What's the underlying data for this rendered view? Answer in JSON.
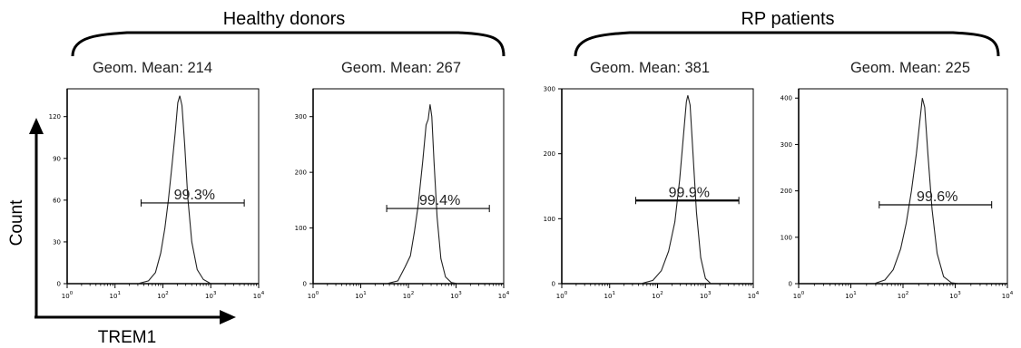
{
  "groups": [
    {
      "title": "Healthy donors"
    },
    {
      "title": "RP patients"
    }
  ],
  "axis_titles": {
    "y": "Count",
    "x": "TREM1"
  },
  "chart_data": [
    {
      "type": "histogram",
      "title": "Geom. Mean: 214",
      "group": "Healthy donors",
      "x_scale": "log",
      "xlim": [
        1,
        10000
      ],
      "x_ticks": [
        "10^0",
        "10^1",
        "10^2",
        "10^3",
        "10^4"
      ],
      "ylim": [
        0,
        140
      ],
      "y_ticks": [
        0,
        30,
        60,
        90,
        120
      ],
      "gate": {
        "label": "99.3%",
        "x_range": [
          35,
          5000
        ],
        "y": 58
      },
      "curve": [
        [
          30,
          0
        ],
        [
          50,
          2
        ],
        [
          70,
          8
        ],
        [
          90,
          22
        ],
        [
          110,
          40
        ],
        [
          130,
          60
        ],
        [
          155,
          85
        ],
        [
          180,
          108
        ],
        [
          205,
          130
        ],
        [
          225,
          135
        ],
        [
          250,
          128
        ],
        [
          285,
          100
        ],
        [
          330,
          62
        ],
        [
          400,
          30
        ],
        [
          520,
          10
        ],
        [
          700,
          3
        ],
        [
          1000,
          0
        ]
      ]
    },
    {
      "type": "histogram",
      "title": "Geom. Mean: 267",
      "group": "Healthy donors",
      "x_scale": "log",
      "xlim": [
        1,
        10000
      ],
      "x_ticks": [
        "10^0",
        "10^1",
        "10^2",
        "10^3",
        "10^4"
      ],
      "ylim": [
        0,
        350
      ],
      "y_ticks": [
        0,
        100,
        200,
        300
      ],
      "gate": {
        "label": "99.4%",
        "x_range": [
          35,
          5000
        ],
        "y": 135
      },
      "curve": [
        [
          35,
          0
        ],
        [
          60,
          5
        ],
        [
          85,
          30
        ],
        [
          110,
          50
        ],
        [
          135,
          95
        ],
        [
          160,
          140
        ],
        [
          200,
          220
        ],
        [
          235,
          285
        ],
        [
          260,
          295
        ],
        [
          285,
          322
        ],
        [
          310,
          300
        ],
        [
          345,
          220
        ],
        [
          400,
          120
        ],
        [
          480,
          45
        ],
        [
          600,
          12
        ],
        [
          800,
          2
        ],
        [
          1100,
          0
        ]
      ]
    },
    {
      "type": "histogram",
      "title": "Geom. Mean: 381",
      "group": "RP patients",
      "x_scale": "log",
      "xlim": [
        1,
        10000
      ],
      "x_ticks": [
        "10^0",
        "10^1",
        "10^2",
        "10^3",
        "10^4"
      ],
      "ylim": [
        0,
        300
      ],
      "y_ticks": [
        0,
        100,
        200,
        300
      ],
      "gate": {
        "label": "99.9%",
        "x_range": [
          35,
          5000
        ],
        "y": 128
      },
      "curve": [
        [
          45,
          0
        ],
        [
          80,
          5
        ],
        [
          120,
          20
        ],
        [
          170,
          50
        ],
        [
          230,
          95
        ],
        [
          290,
          160
        ],
        [
          350,
          230
        ],
        [
          400,
          280
        ],
        [
          430,
          290
        ],
        [
          480,
          275
        ],
        [
          550,
          200
        ],
        [
          650,
          110
        ],
        [
          800,
          40
        ],
        [
          1000,
          8
        ],
        [
          1300,
          0
        ]
      ]
    },
    {
      "type": "histogram",
      "title": "Geom. Mean: 225",
      "group": "RP patients",
      "x_scale": "log",
      "xlim": [
        1,
        10000
      ],
      "x_ticks": [
        "10^0",
        "10^1",
        "10^2",
        "10^3",
        "10^4"
      ],
      "ylim": [
        0,
        420
      ],
      "y_ticks": [
        0,
        100,
        200,
        300,
        400
      ],
      "gate": {
        "label": "99.6%",
        "x_range": [
          35,
          5000
        ],
        "y": 170
      },
      "curve": [
        [
          28,
          0
        ],
        [
          45,
          8
        ],
        [
          65,
          30
        ],
        [
          90,
          75
        ],
        [
          115,
          130
        ],
        [
          145,
          200
        ],
        [
          180,
          280
        ],
        [
          210,
          350
        ],
        [
          235,
          400
        ],
        [
          260,
          380
        ],
        [
          300,
          280
        ],
        [
          360,
          160
        ],
        [
          450,
          65
        ],
        [
          600,
          15
        ],
        [
          850,
          2
        ],
        [
          1200,
          0
        ]
      ]
    }
  ]
}
